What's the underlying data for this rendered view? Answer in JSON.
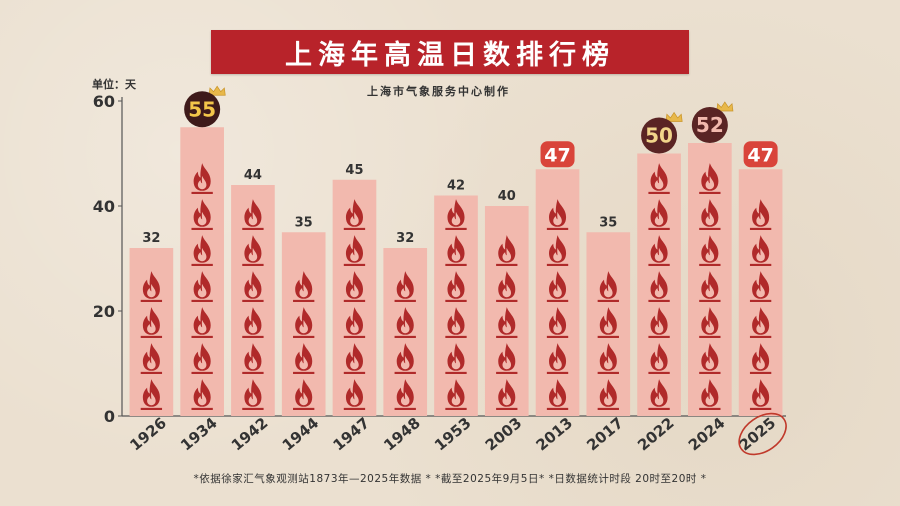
{
  "title": "上海年高温日数排行榜",
  "unit_label": "单位：天",
  "subtitle": "上海市气象服务中心制作",
  "footnote": "*依据徐家汇气象观测站1873年—2025年数据 * *截至2025年9月5日* *日数据统计时段 20时至20时 *",
  "colors": {
    "title_bg": "#b8232a",
    "bar": "#f2b9ae",
    "flame": "#b02a2a",
    "badge_red": "#d9443a",
    "badge_dark": "#5a2424",
    "badge_darker": "#3e1a1a",
    "crown": "#e8b84a",
    "circle": "#c0392b"
  },
  "chart_data": {
    "type": "bar",
    "title": "上海年高温日数排行榜",
    "ylabel": "单位：天",
    "xlabel": "",
    "ylim": [
      0,
      60
    ],
    "yticks": [
      0,
      20,
      40,
      60
    ],
    "grid": false,
    "categories": [
      "1926",
      "1934",
      "1942",
      "1944",
      "1947",
      "1948",
      "1953",
      "2003",
      "2013",
      "2017",
      "2022",
      "2024",
      "2025"
    ],
    "values": [
      32,
      55,
      44,
      35,
      45,
      32,
      42,
      40,
      47,
      35,
      50,
      52,
      47
    ],
    "badge_style": [
      "plain",
      "top1",
      "plain",
      "plain",
      "plain",
      "plain",
      "plain",
      "plain",
      "red",
      "plain",
      "top3",
      "top2",
      "red"
    ],
    "circled_category": "2025"
  }
}
